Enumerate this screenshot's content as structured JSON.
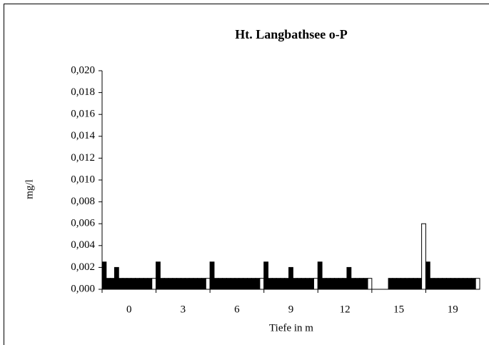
{
  "chart_data": {
    "type": "bar",
    "title": "Ht. Langbathsee  o-P",
    "x_label": "Tiefe in m",
    "y_label": "mg/l",
    "categories": [
      "0",
      "3",
      "6",
      "9",
      "12",
      "15",
      "19"
    ],
    "series": [
      {
        "color": "#000000",
        "values": [
          0.0025,
          0.0025,
          0.0025,
          0.0025,
          0.0025,
          null,
          0.0025
        ]
      },
      {
        "color": "#000000",
        "values": [
          0.001,
          0.001,
          0.001,
          0.001,
          0.001,
          null,
          0.001
        ]
      },
      {
        "color": "#000000",
        "values": [
          0.001,
          0.001,
          0.001,
          0.001,
          0.001,
          null,
          0.001
        ]
      },
      {
        "color": "#000000",
        "values": [
          0.002,
          0.001,
          0.001,
          0.001,
          0.001,
          null,
          0.001
        ]
      },
      {
        "color": "#000000",
        "values": [
          0.001,
          0.001,
          0.001,
          0.001,
          0.001,
          0.001,
          0.001
        ]
      },
      {
        "color": "#000000",
        "values": [
          0.001,
          0.001,
          0.001,
          0.001,
          0.001,
          0.001,
          0.001
        ]
      },
      {
        "color": "#000000",
        "values": [
          0.001,
          0.001,
          0.001,
          0.002,
          0.001,
          0.001,
          0.001
        ]
      },
      {
        "color": "#000000",
        "values": [
          0.001,
          0.001,
          0.001,
          0.001,
          0.002,
          0.001,
          0.001
        ]
      },
      {
        "color": "#000000",
        "values": [
          0.001,
          0.001,
          0.001,
          0.001,
          0.001,
          0.001,
          0.001
        ]
      },
      {
        "color": "#000000",
        "values": [
          0.001,
          0.001,
          0.001,
          0.001,
          0.001,
          0.001,
          0.001
        ]
      },
      {
        "color": "#000000",
        "values": [
          0.001,
          0.001,
          0.001,
          0.001,
          0.001,
          0.001,
          0.001
        ]
      },
      {
        "color": "#000000",
        "values": [
          0.001,
          0.001,
          0.001,
          0.001,
          0.001,
          0.001,
          0.001
        ]
      },
      {
        "color": "#ffffff",
        "values": [
          0.001,
          0.001,
          0.001,
          0.001,
          0.001,
          0.006,
          0.001
        ]
      }
    ],
    "ylim": [
      0,
      0.02
    ],
    "yticks": [
      {
        "value": 0,
        "label": "0,000"
      },
      {
        "value": 0.002,
        "label": "0,002"
      },
      {
        "value": 0.004,
        "label": "0,004"
      },
      {
        "value": 0.006,
        "label": "0,006"
      },
      {
        "value": 0.008,
        "label": "0,008"
      },
      {
        "value": 0.01,
        "label": "0,010"
      },
      {
        "value": 0.012,
        "label": "0,012"
      },
      {
        "value": 0.014,
        "label": "0,014"
      },
      {
        "value": 0.016,
        "label": "0,016"
      },
      {
        "value": 0.018,
        "label": "0,018"
      },
      {
        "value": 0.02,
        "label": "0,020"
      }
    ],
    "grid": false
  }
}
